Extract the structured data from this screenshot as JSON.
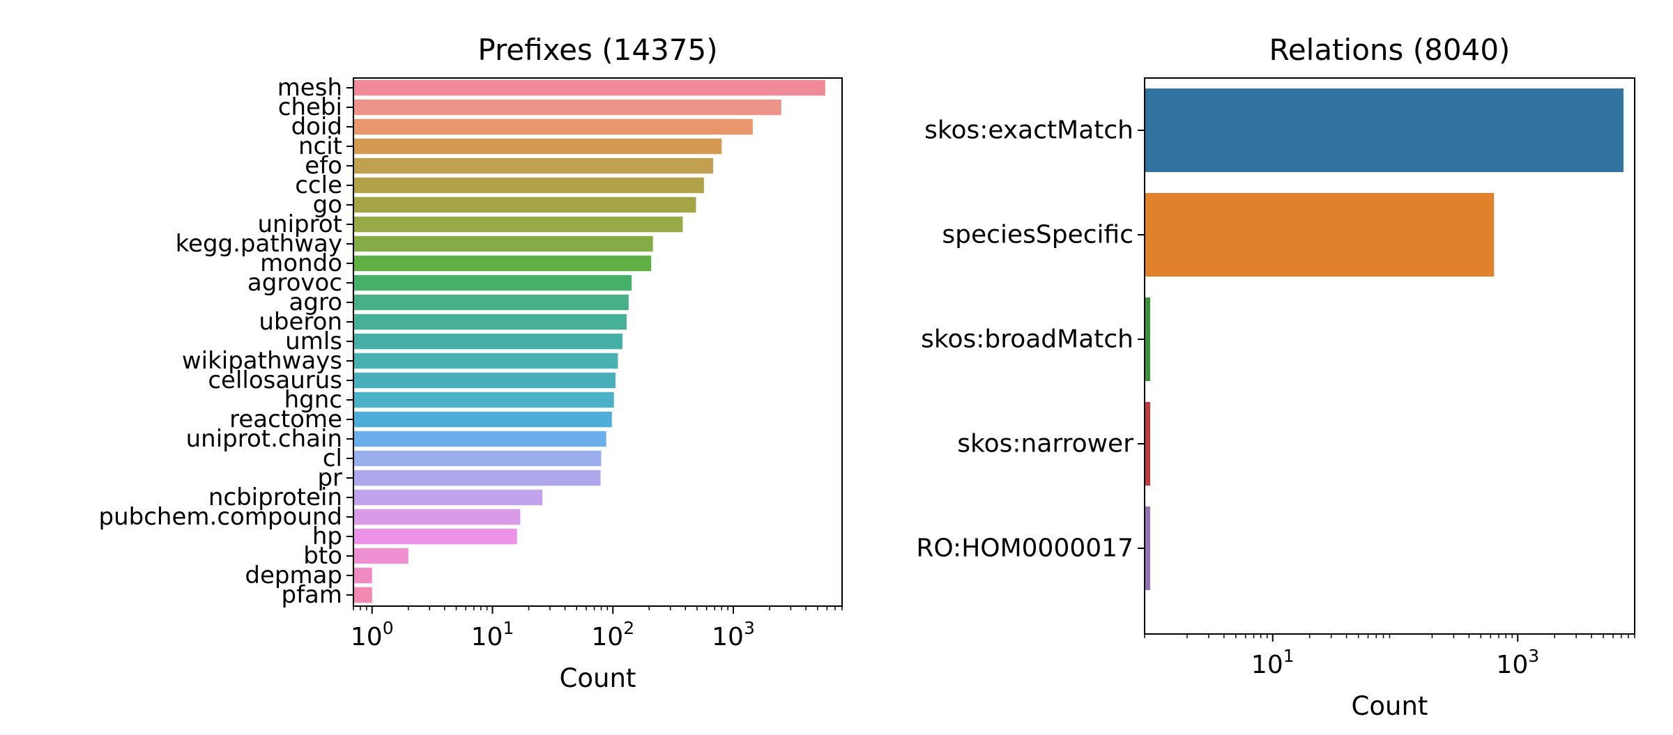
{
  "chart_data": [
    {
      "type": "bar",
      "orientation": "horizontal",
      "title": "Prefixes (14375)",
      "xlabel": "Count",
      "ylabel": "",
      "xscale": "log",
      "xlim": [
        0.7,
        8000
      ],
      "xticks": [
        {
          "value": 1,
          "base": "10",
          "exp": "0"
        },
        {
          "value": 10,
          "base": "10",
          "exp": "1"
        },
        {
          "value": 100,
          "base": "10",
          "exp": "2"
        },
        {
          "value": 1000,
          "base": "10",
          "exp": "3"
        }
      ],
      "grid": false,
      "categories": [
        "mesh",
        "chebi",
        "doid",
        "ncit",
        "efo",
        "ccle",
        "go",
        "uniprot",
        "kegg.pathway",
        "mondo",
        "agrovoc",
        "agro",
        "uberon",
        "umls",
        "wikipathways",
        "cellosaurus",
        "hgnc",
        "reactome",
        "uniprot.chain",
        "cl",
        "pr",
        "ncbiprotein",
        "pubchem.compound",
        "hp",
        "bto",
        "depmap",
        "pfam"
      ],
      "values": [
        5800,
        2500,
        1450,
        800,
        680,
        570,
        490,
        380,
        215,
        208,
        143,
        135,
        130,
        120,
        110,
        105,
        102,
        98,
        88,
        80,
        79,
        26,
        17,
        16,
        2,
        1,
        1
      ],
      "colors": [
        "#f08a98",
        "#ee9388",
        "#e8976c",
        "#d49a52",
        "#c1a04f",
        "#b1a24a",
        "#a5a547",
        "#97a945",
        "#84ad47",
        "#60b046",
        "#46b06b",
        "#47b086",
        "#47b197",
        "#47b0a6",
        "#49b1b0",
        "#49b0bb",
        "#4ab1c6",
        "#4eaed7",
        "#6aaeec",
        "#9aaeec",
        "#aea7ec",
        "#c1a2ec",
        "#d99ae7",
        "#eb93e6",
        "#ee8fd1",
        "#f08bc4",
        "#f189b2"
      ]
    },
    {
      "type": "bar",
      "orientation": "horizontal",
      "title": "Relations (8040)",
      "xlabel": "Count",
      "ylabel": "",
      "xscale": "log",
      "xlim": [
        0.9,
        9000
      ],
      "xticks": [
        {
          "value": 10,
          "base": "10",
          "exp": "1"
        },
        {
          "value": 1000,
          "base": "10",
          "exp": "3"
        }
      ],
      "grid": false,
      "categories": [
        "skos:exactMatch",
        "speciesSpecific",
        "skos:broadMatch",
        "skos:narrower",
        "RO:HOM0000017"
      ],
      "values": [
        7300,
        640,
        1,
        1,
        1
      ],
      "colors": [
        "#3274a1",
        "#e1812c",
        "#3a923a",
        "#c03d3e",
        "#9372b2"
      ]
    }
  ]
}
